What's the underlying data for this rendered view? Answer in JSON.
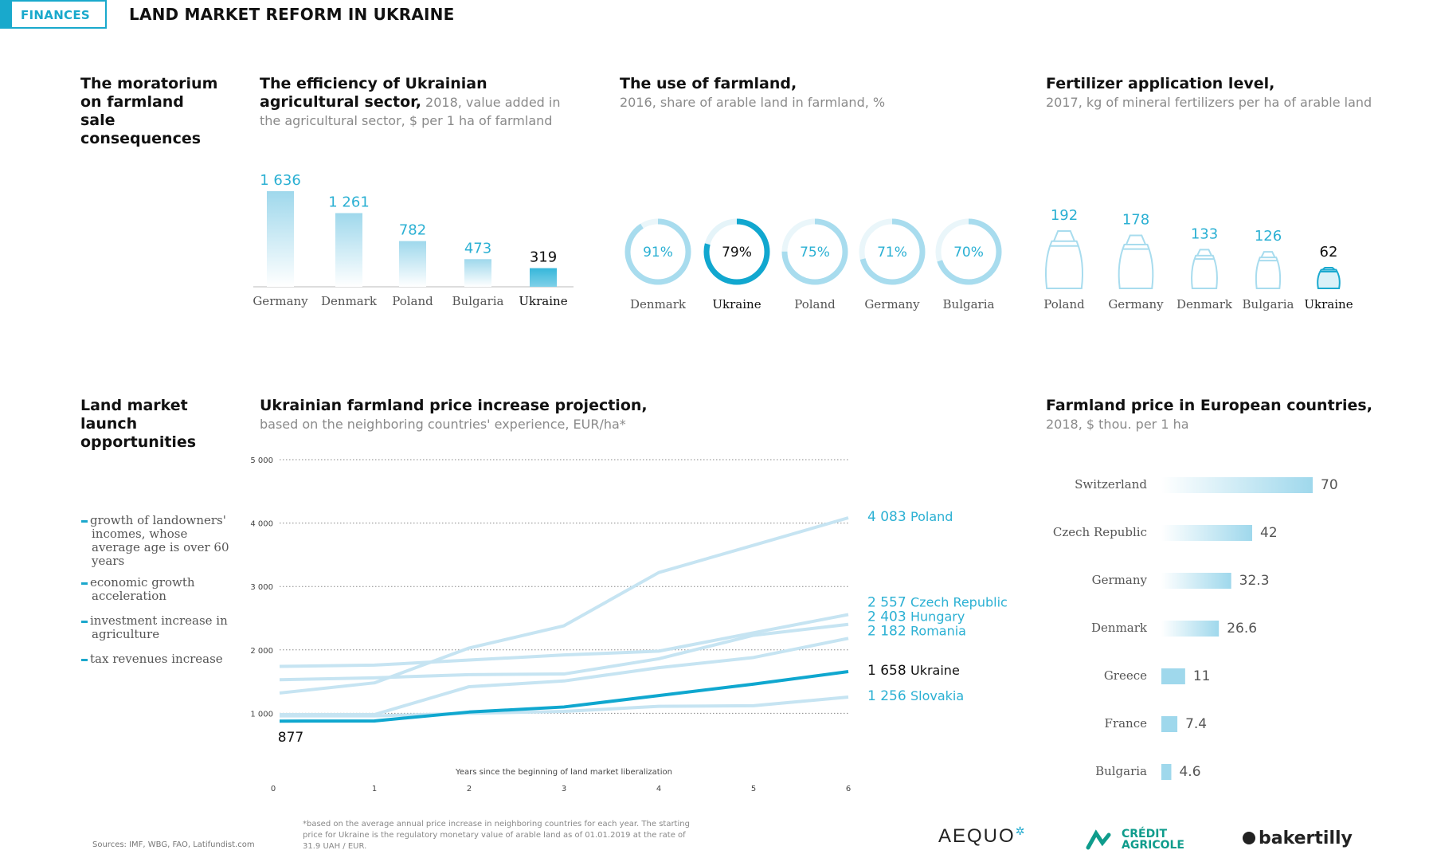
{
  "header": {
    "tag": "FINANCES",
    "title": "LAND MARKET REFORM IN UKRAINE"
  },
  "moratorium": {
    "title": "The moratorium on farmland sale consequences"
  },
  "opportunities": {
    "title": "Land market launch opportunities",
    "bullets": [
      "growth of landowners' incomes, whose average age is over 60 years",
      "economic growth acceleration",
      "investment increase in agriculture",
      "tax revenues increase"
    ]
  },
  "efficiency": {
    "title": "The efficiency of Ukrainian agricultural sector,",
    "subtitle": " 2018, value added in the agricultural sector, $ per 1 ha of farmland"
  },
  "farmland_use": {
    "title": "The use of farmland,",
    "subtitle": "2016, share of arable land in farmland, %"
  },
  "fertilizer": {
    "title": "Fertilizer application level,",
    "subtitle": "2017, kg of mineral fertilizers per ha of arable land"
  },
  "projection": {
    "title": "Ukrainian farmland price increase projection,",
    "subtitle": "based on the neighboring countries' experience, EUR/ha*",
    "footnote": "*based on the average annual price increase in neighboring countries for each year. The starting price for Ukraine is the regulatory monetary value of arable land as of 01.01.2019 at the rate of 31.9 UAH / EUR."
  },
  "european_prices": {
    "title": "Farmland price in European countries,",
    "subtitle": "2018, $ thou. per 1 ha"
  },
  "sources": "Sources: IMF, WBG, FAO, Latifundist.com",
  "logos": {
    "aequo": "AEQUO",
    "credit_line1": "CRÉDIT",
    "credit_line2": "AGRICOLE",
    "baker": "bakertilly"
  },
  "colors": {
    "accent": "#1ba7cc",
    "light": "#a8dcee",
    "ukraine_line": "#0fa7cf",
    "other_lines": "#c6e4f2"
  },
  "chart_data": [
    {
      "id": "efficiency",
      "type": "bar",
      "categories": [
        "Germany",
        "Denmark",
        "Poland",
        "Bulgaria",
        "Ukraine"
      ],
      "values": [
        1636,
        1261,
        782,
        473,
        319
      ],
      "value_labels": [
        "1 636",
        "1 261",
        "782",
        "473",
        "319"
      ],
      "highlight": "Ukraine"
    },
    {
      "id": "farmland_use",
      "type": "pie",
      "categories": [
        "Denmark",
        "Ukraine",
        "Poland",
        "Germany",
        "Bulgaria"
      ],
      "values": [
        91,
        79,
        75,
        71,
        70
      ],
      "value_labels": [
        "91%",
        "79%",
        "75%",
        "71%",
        "70%"
      ],
      "highlight": "Ukraine"
    },
    {
      "id": "fertilizer",
      "type": "bar",
      "categories": [
        "Poland",
        "Germany",
        "Denmark",
        "Bulgaria",
        "Ukraine"
      ],
      "values": [
        192,
        178,
        133,
        126,
        62
      ],
      "value_labels": [
        "192",
        "178",
        "133",
        "126",
        "62"
      ],
      "icon": "fertilizer-bag-icon",
      "highlight": "Ukraine"
    },
    {
      "id": "projection",
      "type": "line",
      "x": [
        0,
        1,
        2,
        3,
        4,
        5,
        6
      ],
      "x_ticks": [
        "0",
        "1",
        "2",
        "3",
        "4",
        "5",
        "6"
      ],
      "y_ticks": [
        "5 000",
        "4 000",
        "3 000",
        "2 000",
        "1 000"
      ],
      "y_tick_values": [
        5000,
        4000,
        3000,
        2000,
        1000
      ],
      "xlabel": "Years since the beginning of land market liberalization",
      "ylim": [
        0,
        5000
      ],
      "start_label": "877",
      "series": [
        {
          "name": "Poland",
          "end_label": "4 083",
          "values": [
            1320,
            1480,
            2030,
            2380,
            3220,
            3650,
            4083
          ]
        },
        {
          "name": "Czech Republic",
          "end_label": "2 557",
          "values": [
            1740,
            1760,
            1840,
            1920,
            1980,
            2270,
            2557
          ]
        },
        {
          "name": "Hungary",
          "end_label": "2 403",
          "values": [
            1530,
            1560,
            1610,
            1620,
            1860,
            2230,
            2403
          ]
        },
        {
          "name": "Romania",
          "end_label": "2 182",
          "values": [
            980,
            980,
            1420,
            1510,
            1720,
            1880,
            2182
          ]
        },
        {
          "name": "Ukraine",
          "end_label": "1 658",
          "values": [
            877,
            880,
            1020,
            1100,
            1280,
            1460,
            1658
          ]
        },
        {
          "name": "Slovakia",
          "end_label": "1 256",
          "values": [
            960,
            960,
            1000,
            1030,
            1110,
            1120,
            1256
          ]
        }
      ],
      "highlight": "Ukraine"
    },
    {
      "id": "european_prices",
      "type": "bar",
      "orientation": "horizontal",
      "categories": [
        "Switzerland",
        "Czech Republic",
        "Germany",
        "Denmark",
        "Greece",
        "France",
        "Bulgaria"
      ],
      "values": [
        70,
        42,
        32.3,
        26.6,
        11,
        7.4,
        4.6
      ],
      "value_labels": [
        "70",
        "42",
        "32.3",
        "26.6",
        "11",
        "7.4",
        "4.6"
      ]
    }
  ]
}
